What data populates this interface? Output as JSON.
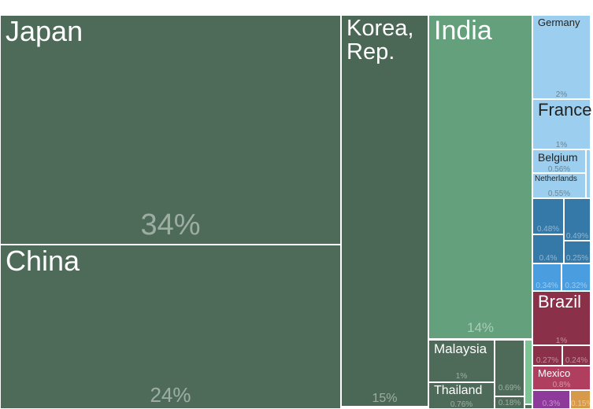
{
  "colors": {
    "asia_dark": "#4e6b59",
    "asia_korea": "#4b6856",
    "asia_mid": "#64a07c",
    "asia_light": "#7cc494",
    "europe_light": "#9ccfef",
    "europe_mid": "#4a9ee0",
    "europe_dark": "#3579a8",
    "americas": "#8b3049",
    "americas_light": "#b03f5f",
    "other_purple": "#8e3a9b",
    "other_orange": "#d79a4a"
  },
  "chart_data": {
    "type": "treemap",
    "title": "",
    "cells": [
      {
        "name": "Japan",
        "label": "Japan",
        "share": 34,
        "value_label": "34%",
        "group": "asia_dark"
      },
      {
        "name": "China",
        "label": "China",
        "share": 24,
        "value_label": "24%",
        "group": "asia_dark"
      },
      {
        "name": "Korea, Rep.",
        "label": "Korea,\nRep.",
        "share": 15,
        "value_label": "15%",
        "group": "asia_korea"
      },
      {
        "name": "India",
        "label": "India",
        "share": 14,
        "value_label": "14%",
        "group": "asia_mid"
      },
      {
        "name": "Malaysia",
        "label": "Malaysia",
        "share": 1,
        "value_label": "1%",
        "group": "asia_dark"
      },
      {
        "name": "Thailand",
        "label": "Thailand",
        "share": 0.76,
        "value_label": "0.76%",
        "group": "asia_dark"
      },
      {
        "name": "asia-small-1",
        "label": "",
        "share": 0.69,
        "value_label": "0.69%",
        "group": "asia_dark"
      },
      {
        "name": "asia-small-2",
        "label": "",
        "share": 0.18,
        "value_label": "0.18%",
        "group": "asia_dark"
      },
      {
        "name": "asia-small-3",
        "label": "",
        "share": null,
        "value_label": "",
        "group": "asia_light"
      },
      {
        "name": "asia-small-4",
        "label": "",
        "share": null,
        "value_label": "",
        "group": "asia_dark"
      },
      {
        "name": "Germany",
        "label": "Germany",
        "share": 2,
        "value_label": "2%",
        "group": "europe_light"
      },
      {
        "name": "France",
        "label": "France",
        "share": 1,
        "value_label": "1%",
        "group": "europe_light"
      },
      {
        "name": "Belgium",
        "label": "Belgium",
        "share": 0.56,
        "value_label": "0.56%",
        "group": "europe_light"
      },
      {
        "name": "Netherlands",
        "label": "Netherlands",
        "share": 0.55,
        "value_label": "0.55%",
        "group": "europe_light"
      },
      {
        "name": "europe-small-1",
        "label": "",
        "share": null,
        "value_label": "",
        "group": "europe_light"
      },
      {
        "name": "europe-mid-1",
        "label": "",
        "share": 0.48,
        "value_label": "0.48%",
        "group": "europe_dark"
      },
      {
        "name": "europe-mid-2",
        "label": "",
        "share": 0.49,
        "value_label": "0.49%",
        "group": "europe_dark"
      },
      {
        "name": "europe-mid-3",
        "label": "",
        "share": 0.4,
        "value_label": "0.4%",
        "group": "europe_dark"
      },
      {
        "name": "europe-mid-4",
        "label": "",
        "share": 0.25,
        "value_label": "0.25%",
        "group": "europe_dark"
      },
      {
        "name": "europe-mid-5",
        "label": "",
        "share": 0.34,
        "value_label": "0.34%",
        "group": "europe_mid"
      },
      {
        "name": "europe-mid-6",
        "label": "",
        "share": 0.32,
        "value_label": "0.32%",
        "group": "europe_mid"
      },
      {
        "name": "Brazil",
        "label": "Brazil",
        "share": 1,
        "value_label": "1%",
        "group": "americas"
      },
      {
        "name": "americas-small-1",
        "label": "",
        "share": 0.27,
        "value_label": "0.27%",
        "group": "americas"
      },
      {
        "name": "americas-small-2",
        "label": "",
        "share": 0.24,
        "value_label": "0.24%",
        "group": "americas"
      },
      {
        "name": "Mexico",
        "label": "Mexico",
        "share": 0.8,
        "value_label": "0.8%",
        "group": "americas_light"
      },
      {
        "name": "other-small-1",
        "label": "",
        "share": 0.3,
        "value_label": "0.3%",
        "group": "other_purple"
      },
      {
        "name": "other-small-2",
        "label": "",
        "share": 0.15,
        "value_label": "0.15%",
        "group": "other_orange"
      }
    ]
  }
}
